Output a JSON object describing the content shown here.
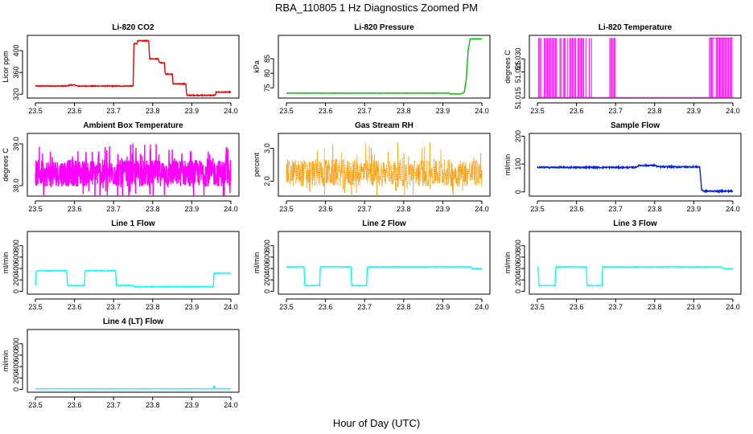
{
  "figure": {
    "title": "RBA_110805  1 Hz Diagnostics Zoomed PM",
    "xlabel": "Hour of Day (UTC)"
  },
  "chart_data": [
    {
      "type": "line",
      "title": "Li-820 CO2",
      "ylabel": "Licor ppm",
      "color": "#ee0000",
      "xlim": [
        23.5,
        24.0
      ],
      "ylim": [
        313,
        428
      ],
      "xticks": [
        "23.5",
        "23.6",
        "23.7",
        "23.8",
        "23.9",
        "24.0"
      ],
      "yticks": [
        {
          "v": 320,
          "label": "320"
        },
        {
          "v": 360,
          "label": "360"
        },
        {
          "v": 400,
          "label": "400"
        }
      ],
      "series": [
        {
          "name": "CO2",
          "noise": 0.8,
          "x": [
            23.5,
            23.58,
            23.59,
            23.6,
            23.608,
            23.75,
            23.752,
            23.76,
            23.761,
            23.79,
            23.792,
            23.815,
            23.817,
            23.83,
            23.832,
            23.85,
            23.852,
            23.885,
            23.887,
            23.96,
            23.962,
            24.0
          ],
          "y": [
            335,
            335,
            337,
            337,
            335,
            335,
            413,
            413,
            418,
            418,
            385,
            385,
            378,
            378,
            357,
            357,
            339,
            339,
            318,
            318,
            324,
            324
          ]
        }
      ]
    },
    {
      "type": "line",
      "title": "Li-820 Pressure",
      "ylabel": "kPa",
      "color": "#00bb00",
      "xlim": [
        23.5,
        24.0
      ],
      "ylim": [
        71.5,
        93
      ],
      "xticks": [
        "23.5",
        "23.6",
        "23.7",
        "23.8",
        "23.9",
        "24.0"
      ],
      "yticks": [
        {
          "v": 75,
          "label": "75"
        },
        {
          "v": 80,
          "label": "80"
        },
        {
          "v": 85,
          "label": "85"
        }
      ],
      "series": [
        {
          "name": "Pressure",
          "noise": 0.05,
          "x": [
            23.5,
            23.915,
            23.92,
            23.945,
            23.955,
            23.96,
            23.965,
            23.97,
            24.0
          ],
          "y": [
            73.2,
            73.2,
            72.9,
            72.9,
            73.5,
            78,
            88,
            91.8,
            91.8
          ]
        }
      ]
    },
    {
      "type": "line",
      "title": "Li-820 Temperature",
      "ylabel": "degrees C",
      "color": "#ff00ff",
      "xlim": [
        23.5,
        24.0
      ],
      "ylim": [
        51.015,
        51.039
      ],
      "xticks": [
        "23.5",
        "23.6",
        "23.7",
        "23.8",
        "23.9",
        "24.0"
      ],
      "yticks": [
        {
          "v": 51.015,
          "label": "51.015"
        },
        {
          "v": 51.025,
          "label": "51.025"
        },
        {
          "v": 51.03,
          "label": "51.030"
        }
      ],
      "series": [
        {
          "name": "Temperature",
          "flip": [
            51.0152,
            51.038
          ],
          "spans": [
            [
              23.5,
              23.64
            ],
            [
              23.685,
              23.705
            ],
            [
              23.94,
              24.0
            ]
          ]
        }
      ]
    },
    {
      "type": "line",
      "title": "Ambient Box Temperature",
      "ylabel": "degrees C",
      "color": "#ff00ff",
      "xlim": [
        23.5,
        24.0
      ],
      "ylim": [
        37.75,
        39.25
      ],
      "xticks": [
        "23.5",
        "23.6",
        "23.7",
        "23.8",
        "23.9",
        "24.0"
      ],
      "yticks": [
        {
          "v": 38.0,
          "label": "38.0"
        },
        {
          "v": 39.0,
          "label": "39.0"
        }
      ],
      "series": [
        {
          "name": "Box Temp",
          "noise": 0.32,
          "dense": 900,
          "x": [
            23.5,
            24.0
          ],
          "y": [
            38.3,
            38.3
          ]
        }
      ]
    },
    {
      "type": "line",
      "title": "Gas Stream RH",
      "ylabel": "percent",
      "color": "#ff9900",
      "xlim": [
        23.5,
        24.0
      ],
      "ylim": [
        1.55,
        3.45
      ],
      "xticks": [
        "23.5",
        "23.6",
        "23.7",
        "23.8",
        "23.9",
        "24.0"
      ],
      "yticks": [
        {
          "v": 2.0,
          "label": "2.0"
        },
        {
          "v": 3.0,
          "label": "3.0"
        }
      ],
      "series": [
        {
          "name": "RH",
          "noise": 0.42,
          "dense": 700,
          "points": true,
          "x": [
            23.5,
            24.0
          ],
          "y": [
            2.25,
            2.25
          ]
        }
      ]
    },
    {
      "type": "line",
      "title": "Sample Flow",
      "ylabel": "ml/min",
      "color": "#0022dd",
      "xlim": [
        23.5,
        24.0
      ],
      "ylim": [
        -15,
        210
      ],
      "xticks": [
        "23.5",
        "23.6",
        "23.7",
        "23.8",
        "23.9",
        "24.0"
      ],
      "yticks": [
        {
          "v": 0,
          "label": "0"
        },
        {
          "v": 100,
          "label": "100"
        },
        {
          "v": 200,
          "label": "200"
        }
      ],
      "series": [
        {
          "name": "Sample",
          "noise": 2.5,
          "x": [
            23.5,
            23.75,
            23.76,
            23.8,
            23.81,
            23.915,
            23.92,
            23.925,
            24.0
          ],
          "y": [
            88,
            88,
            95,
            95,
            90,
            90,
            10,
            3,
            3
          ]
        }
      ]
    },
    {
      "type": "line",
      "title": "Line 1 Flow",
      "ylabel": "ml/min",
      "color": "#00ffff",
      "xlim": [
        23.5,
        24.0
      ],
      "ylim": [
        -50,
        1050
      ],
      "xticks": [
        "23.5",
        "23.6",
        "23.7",
        "23.8",
        "23.9",
        "24.0"
      ],
      "yticks": [
        {
          "v": 0,
          "label": "0"
        },
        {
          "v": 200,
          "label": "200"
        },
        {
          "v": 400,
          "label": "400"
        },
        {
          "v": 600,
          "label": "600"
        },
        {
          "v": 800,
          "label": "800"
        }
      ],
      "series": [
        {
          "name": "Line 1",
          "noise": 6,
          "x": [
            23.5,
            23.502,
            23.505,
            23.58,
            23.582,
            23.625,
            23.627,
            23.705,
            23.707,
            23.75,
            23.752,
            23.955,
            23.957,
            24.0
          ],
          "y": [
            100,
            350,
            360,
            360,
            100,
            100,
            360,
            360,
            100,
            100,
            80,
            80,
            320,
            320
          ]
        }
      ]
    },
    {
      "type": "line",
      "title": "Line 2 Flow",
      "ylabel": "ml/min",
      "color": "#00ffff",
      "xlim": [
        23.5,
        24.0
      ],
      "ylim": [
        -50,
        1050
      ],
      "xticks": [
        "23.5",
        "23.6",
        "23.7",
        "23.8",
        "23.9",
        "24.0"
      ],
      "yticks": [
        {
          "v": 0,
          "label": "0"
        },
        {
          "v": 200,
          "label": "200"
        },
        {
          "v": 400,
          "label": "400"
        },
        {
          "v": 600,
          "label": "600"
        },
        {
          "v": 800,
          "label": "800"
        }
      ],
      "series": [
        {
          "name": "Line 2",
          "noise": 4,
          "x": [
            23.5,
            23.545,
            23.547,
            23.585,
            23.587,
            23.665,
            23.667,
            23.705,
            23.707,
            23.97,
            23.975,
            24.0
          ],
          "y": [
            430,
            430,
            100,
            100,
            430,
            430,
            100,
            100,
            430,
            430,
            400,
            400
          ]
        }
      ]
    },
    {
      "type": "line",
      "title": "Line 3 Flow",
      "ylabel": "ml/min",
      "color": "#00ffff",
      "xlim": [
        23.5,
        24.0
      ],
      "ylim": [
        -50,
        1050
      ],
      "xticks": [
        "23.5",
        "23.6",
        "23.7",
        "23.8",
        "23.9",
        "24.0"
      ],
      "yticks": [
        {
          "v": 0,
          "label": "0"
        },
        {
          "v": 200,
          "label": "200"
        },
        {
          "v": 400,
          "label": "400"
        },
        {
          "v": 600,
          "label": "600"
        },
        {
          "v": 800,
          "label": "800"
        }
      ],
      "series": [
        {
          "name": "Line 3",
          "noise": 4,
          "x": [
            23.5,
            23.502,
            23.504,
            23.545,
            23.547,
            23.625,
            23.627,
            23.665,
            23.667,
            23.97,
            23.975,
            24.0
          ],
          "y": [
            430,
            430,
            100,
            100,
            430,
            430,
            100,
            100,
            430,
            430,
            400,
            400
          ]
        }
      ]
    },
    {
      "type": "line",
      "title": "Line 4 (LT) Flow",
      "ylabel": "ml/min",
      "color": "#00ffff",
      "xlim": [
        23.5,
        24.0
      ],
      "ylim": [
        -50,
        1050
      ],
      "xticks": [
        "23.5",
        "23.6",
        "23.7",
        "23.8",
        "23.9",
        "24.0"
      ],
      "yticks": [
        {
          "v": 0,
          "label": "0"
        },
        {
          "v": 200,
          "label": "200"
        },
        {
          "v": 400,
          "label": "400"
        },
        {
          "v": 600,
          "label": "600"
        },
        {
          "v": 800,
          "label": "800"
        }
      ],
      "series": [
        {
          "name": "Line 4",
          "noise": 1,
          "x": [
            23.5,
            23.955,
            23.957,
            23.959,
            23.961,
            24.0
          ],
          "y": [
            10,
            10,
            70,
            10,
            10,
            10
          ]
        }
      ]
    }
  ]
}
